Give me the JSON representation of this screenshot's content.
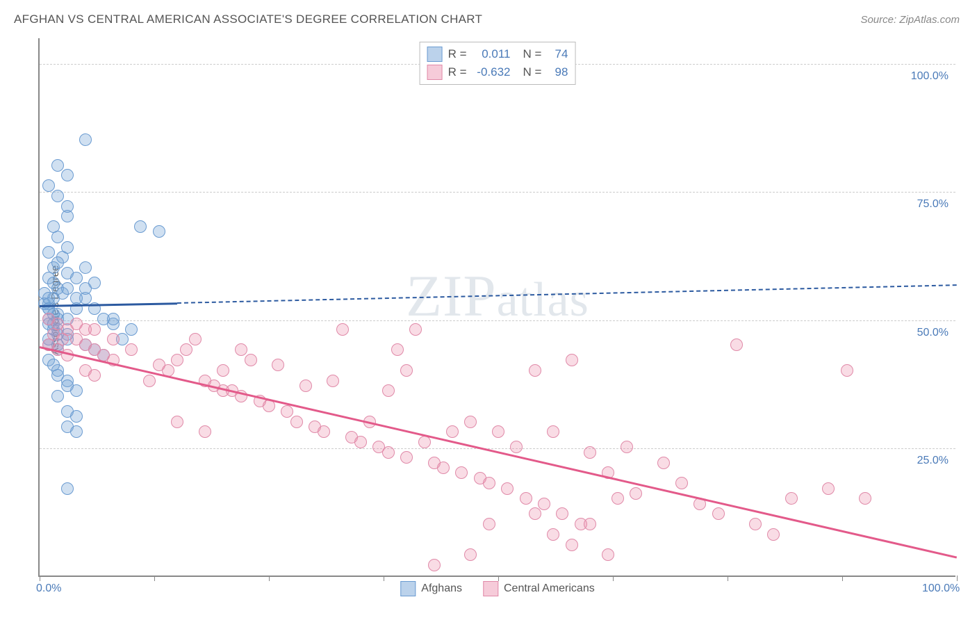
{
  "title": "AFGHAN VS CENTRAL AMERICAN ASSOCIATE'S DEGREE CORRELATION CHART",
  "source": "Source: ZipAtlas.com",
  "y_axis_label": "Associate's Degree",
  "watermark": "ZIPatlas",
  "chart": {
    "type": "scatter",
    "background_color": "#ffffff",
    "grid_color": "#cccccc",
    "axis_color": "#888888",
    "tick_label_color": "#4a7ab8",
    "title_color": "#555555",
    "xlim": [
      0,
      100
    ],
    "ylim": [
      0,
      105
    ],
    "y_ticks": [
      25,
      50,
      75,
      100
    ],
    "y_tick_labels": [
      "25.0%",
      "50.0%",
      "75.0%",
      "100.0%"
    ],
    "x_ticks": [
      0,
      12.5,
      25,
      37.5,
      50,
      62.5,
      75,
      87.5,
      100
    ],
    "x_tick_labels_shown": {
      "0": "0.0%",
      "100": "100.0%"
    },
    "marker_radius": 9,
    "marker_stroke_width": 1.5,
    "title_fontsize": 17,
    "tick_fontsize": 16,
    "series": [
      {
        "name": "Afghans",
        "fill_color": "rgba(120, 165, 215, 0.35)",
        "stroke_color": "#6a9bd1",
        "R": "0.011",
        "N": "74",
        "trend": {
          "color": "#2c5aa0",
          "solid_width": 3,
          "solid_x_start": 0,
          "solid_y_start": 53,
          "solid_x_end": 15,
          "solid_y_end": 53.5,
          "dash_x_start": 15,
          "dash_y_start": 53.5,
          "dash_x_end": 100,
          "dash_y_end": 57
        },
        "points": [
          [
            1,
            52
          ],
          [
            1.5,
            54
          ],
          [
            2,
            56
          ],
          [
            1,
            58
          ],
          [
            1.5,
            60
          ],
          [
            2.5,
            62
          ],
          [
            3,
            64
          ],
          [
            2,
            66
          ],
          [
            1.5,
            68
          ],
          [
            3,
            70
          ],
          [
            5,
            85
          ],
          [
            2,
            80
          ],
          [
            3,
            78
          ],
          [
            1,
            63
          ],
          [
            2,
            61
          ],
          [
            3,
            59
          ],
          [
            1.5,
            57
          ],
          [
            2.5,
            55
          ],
          [
            1,
            53
          ],
          [
            2,
            51
          ],
          [
            1,
            49
          ],
          [
            1.5,
            48
          ],
          [
            2,
            47
          ],
          [
            3,
            46
          ],
          [
            1,
            45
          ],
          [
            2,
            44
          ],
          [
            3,
            50
          ],
          [
            4,
            52
          ],
          [
            5,
            54
          ],
          [
            3,
            56
          ],
          [
            2,
            50
          ],
          [
            1,
            50
          ],
          [
            1.5,
            49
          ],
          [
            2,
            48
          ],
          [
            3,
            47
          ],
          [
            1,
            46
          ],
          [
            2,
            45
          ],
          [
            0.5,
            53
          ],
          [
            1,
            52
          ],
          [
            1.5,
            51
          ],
          [
            13,
            67
          ],
          [
            11,
            68
          ],
          [
            6,
            57
          ],
          [
            7,
            50
          ],
          [
            8,
            49
          ],
          [
            9,
            46
          ],
          [
            10,
            48
          ],
          [
            2,
            40
          ],
          [
            3,
            38
          ],
          [
            4,
            36
          ],
          [
            1,
            42
          ],
          [
            1.5,
            41
          ],
          [
            2,
            39
          ],
          [
            3,
            37
          ],
          [
            2,
            35
          ],
          [
            3,
            32
          ],
          [
            4,
            31
          ],
          [
            3,
            29
          ],
          [
            4,
            28
          ],
          [
            3,
            17
          ],
          [
            5,
            45
          ],
          [
            6,
            44
          ],
          [
            7,
            43
          ],
          [
            8,
            50
          ],
          [
            4,
            54
          ],
          [
            5,
            56
          ],
          [
            6,
            52
          ],
          [
            3,
            72
          ],
          [
            2,
            74
          ],
          [
            1,
            76
          ],
          [
            4,
            58
          ],
          [
            5,
            60
          ],
          [
            0.5,
            55
          ],
          [
            1,
            54
          ]
        ]
      },
      {
        "name": "Central Americans",
        "fill_color": "rgba(235, 140, 170, 0.3)",
        "stroke_color": "#e089a8",
        "R": "-0.632",
        "N": "98",
        "trend": {
          "color": "#e35a8a",
          "solid_width": 3,
          "solid_x_start": 0,
          "solid_y_start": 45,
          "solid_x_end": 100,
          "solid_y_end": 4
        },
        "points": [
          [
            1,
            50
          ],
          [
            2,
            49
          ],
          [
            3,
            48
          ],
          [
            1.5,
            47
          ],
          [
            2.5,
            46
          ],
          [
            1,
            45
          ],
          [
            2,
            44
          ],
          [
            3,
            43
          ],
          [
            4,
            49
          ],
          [
            5,
            48
          ],
          [
            4,
            46
          ],
          [
            5,
            45
          ],
          [
            6,
            44
          ],
          [
            7,
            43
          ],
          [
            8,
            42
          ],
          [
            5,
            40
          ],
          [
            6,
            39
          ],
          [
            12,
            38
          ],
          [
            13,
            41
          ],
          [
            14,
            40
          ],
          [
            15,
            42
          ],
          [
            16,
            44
          ],
          [
            17,
            46
          ],
          [
            18,
            38
          ],
          [
            19,
            37
          ],
          [
            20,
            40
          ],
          [
            21,
            36
          ],
          [
            22,
            35
          ],
          [
            23,
            42
          ],
          [
            24,
            34
          ],
          [
            25,
            33
          ],
          [
            26,
            41
          ],
          [
            27,
            32
          ],
          [
            28,
            30
          ],
          [
            29,
            37
          ],
          [
            30,
            29
          ],
          [
            31,
            28
          ],
          [
            32,
            38
          ],
          [
            33,
            48
          ],
          [
            34,
            27
          ],
          [
            35,
            26
          ],
          [
            36,
            30
          ],
          [
            37,
            25
          ],
          [
            38,
            24
          ],
          [
            39,
            44
          ],
          [
            40,
            23
          ],
          [
            41,
            48
          ],
          [
            42,
            26
          ],
          [
            43,
            22
          ],
          [
            44,
            21
          ],
          [
            45,
            28
          ],
          [
            46,
            20
          ],
          [
            47,
            30
          ],
          [
            48,
            19
          ],
          [
            49,
            18
          ],
          [
            50,
            28
          ],
          [
            51,
            17
          ],
          [
            52,
            25
          ],
          [
            53,
            15
          ],
          [
            54,
            40
          ],
          [
            55,
            14
          ],
          [
            56,
            28
          ],
          [
            57,
            12
          ],
          [
            58,
            42
          ],
          [
            59,
            10
          ],
          [
            60,
            24
          ],
          [
            62,
            20
          ],
          [
            63,
            15
          ],
          [
            64,
            25
          ],
          [
            65,
            16
          ],
          [
            68,
            22
          ],
          [
            70,
            18
          ],
          [
            72,
            14
          ],
          [
            74,
            12
          ],
          [
            76,
            45
          ],
          [
            78,
            10
          ],
          [
            80,
            8
          ],
          [
            82,
            15
          ],
          [
            43,
            2
          ],
          [
            47,
            4
          ],
          [
            49,
            10
          ],
          [
            54,
            12
          ],
          [
            56,
            8
          ],
          [
            58,
            6
          ],
          [
            60,
            10
          ],
          [
            62,
            4
          ],
          [
            86,
            17
          ],
          [
            90,
            15
          ],
          [
            88,
            40
          ],
          [
            15,
            30
          ],
          [
            18,
            28
          ],
          [
            20,
            36
          ],
          [
            22,
            44
          ],
          [
            38,
            36
          ],
          [
            10,
            44
          ],
          [
            8,
            46
          ],
          [
            6,
            48
          ],
          [
            40,
            40
          ]
        ]
      }
    ]
  },
  "legend_top": {
    "r_label": "R =",
    "n_label": "N ="
  },
  "legend_bottom": [
    {
      "swatch_fill": "rgba(120, 165, 215, 0.5)",
      "swatch_stroke": "#6a9bd1",
      "label": "Afghans"
    },
    {
      "swatch_fill": "rgba(235, 140, 170, 0.45)",
      "swatch_stroke": "#e089a8",
      "label": "Central Americans"
    }
  ]
}
